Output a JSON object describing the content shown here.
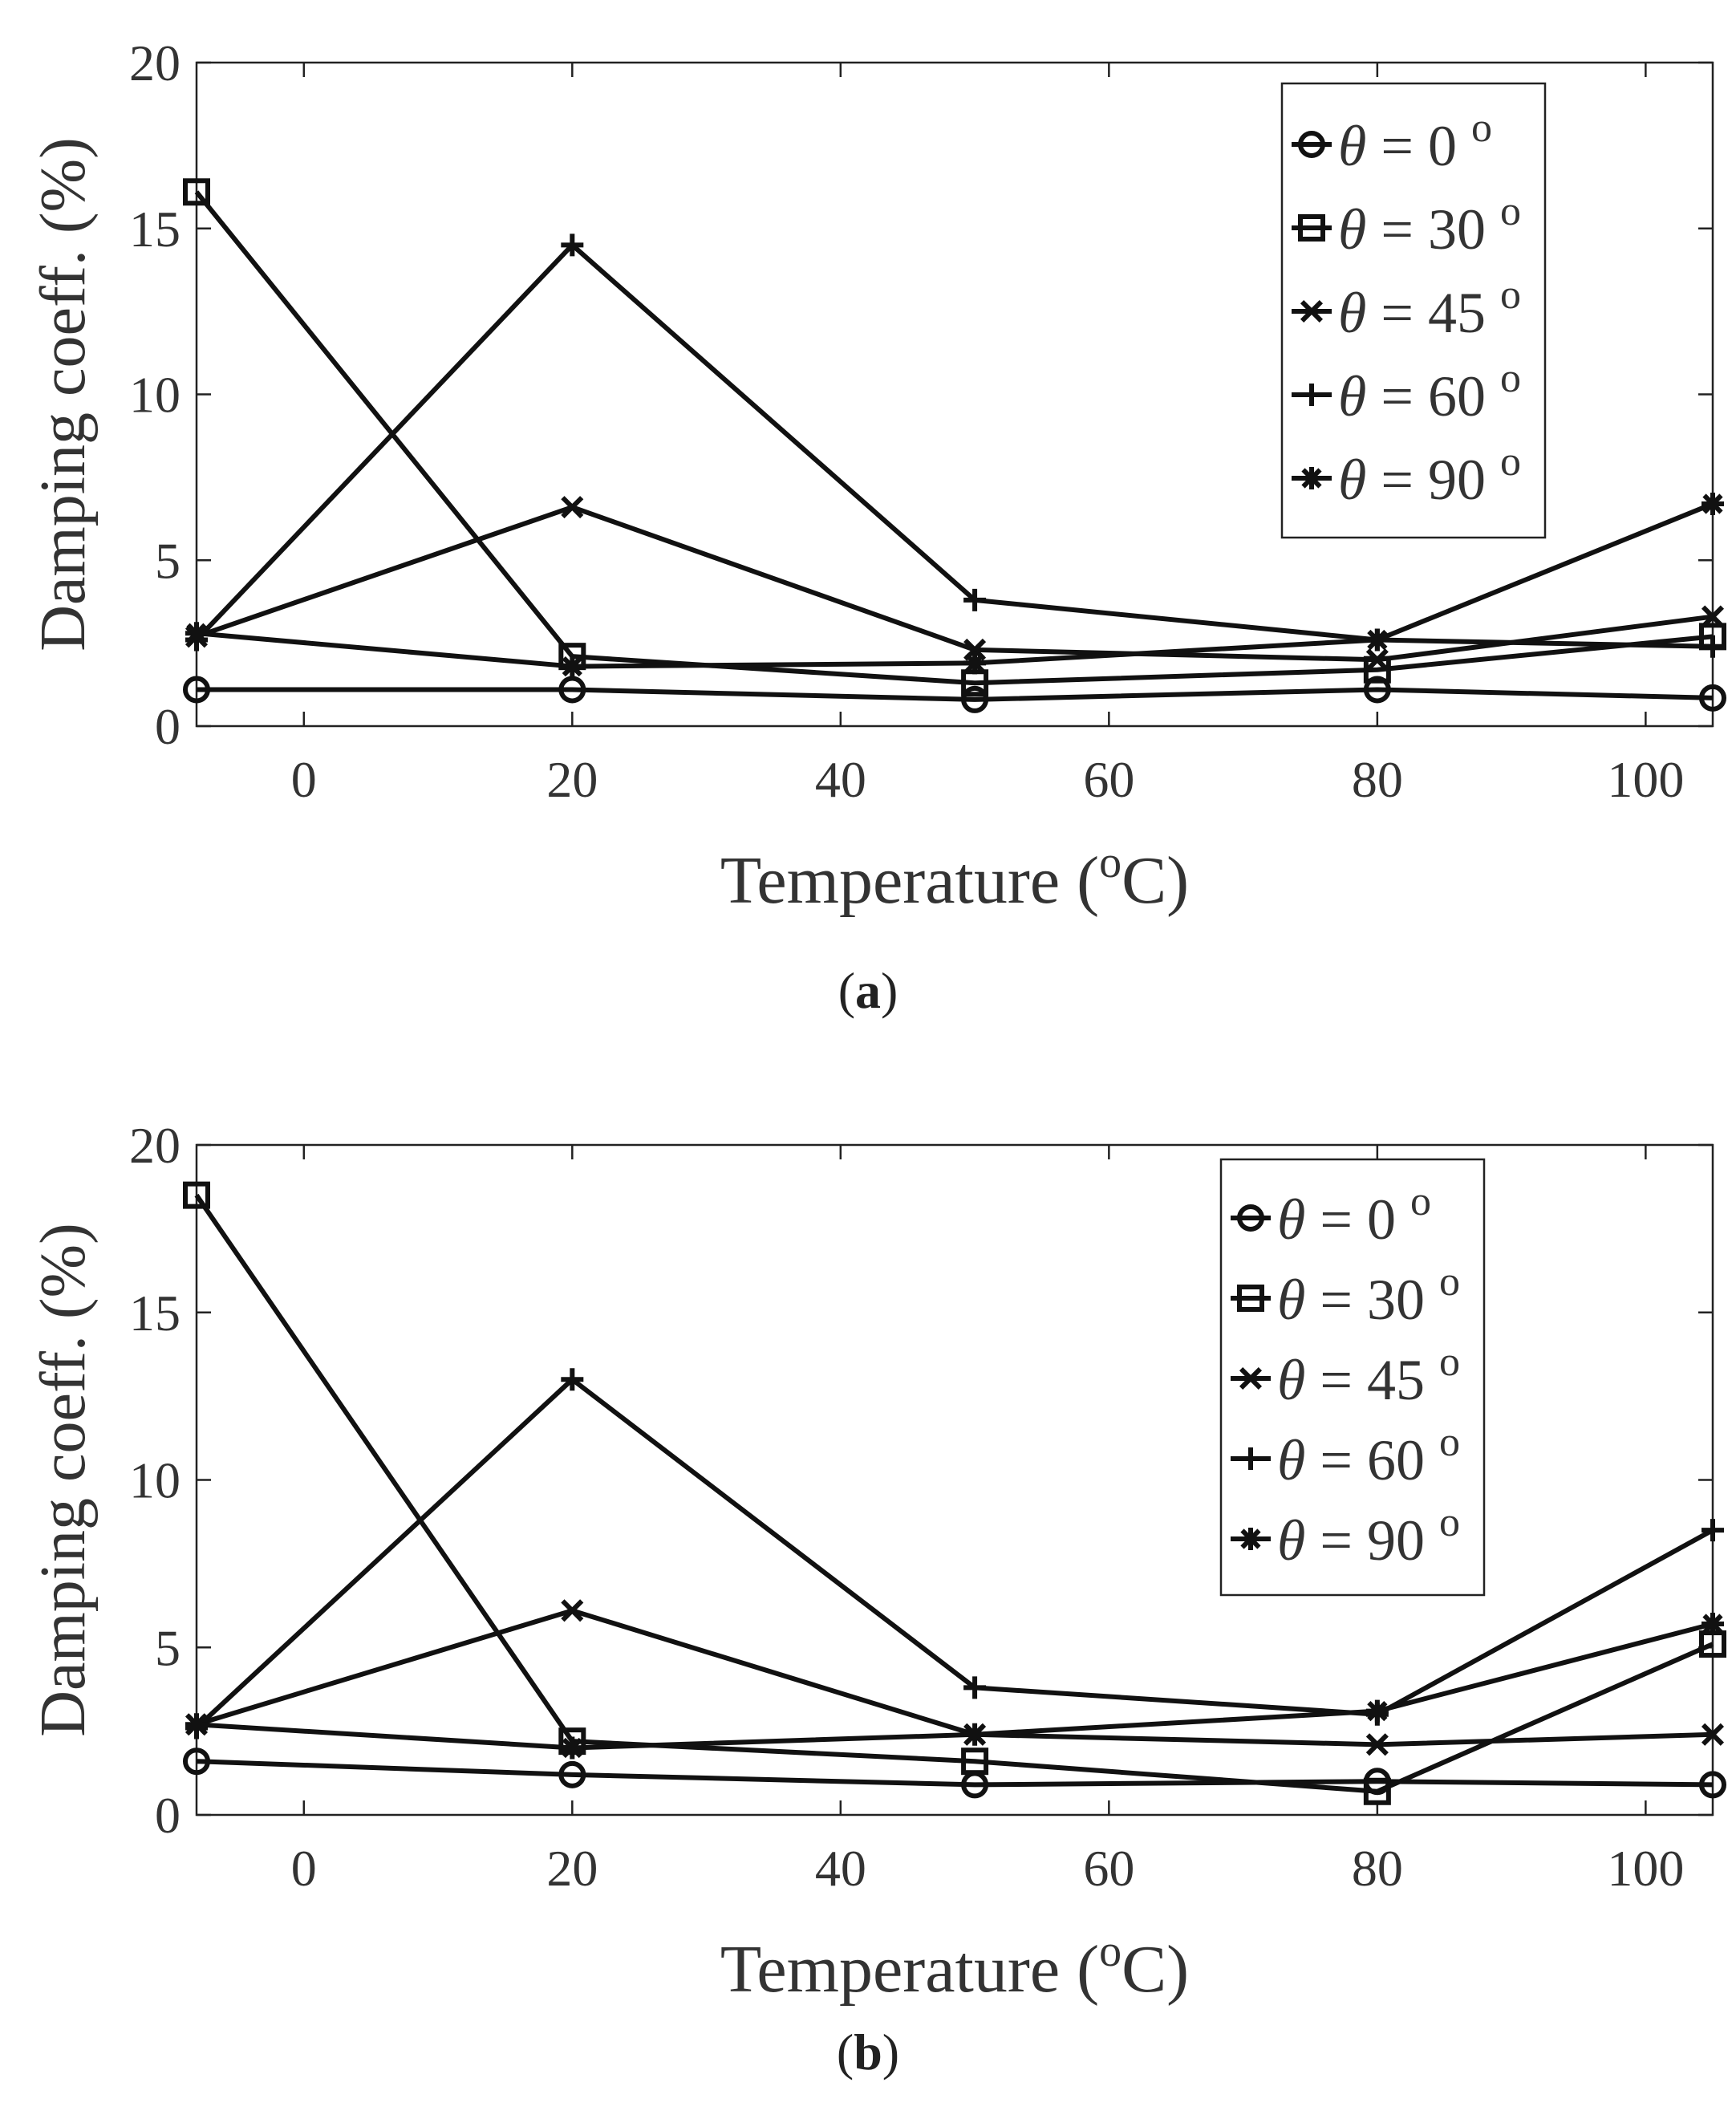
{
  "figures": [
    {
      "caption": {
        "open": "(",
        "letter": "a",
        "close": ")"
      }
    },
    {
      "caption": {
        "open": "(",
        "letter": "b",
        "close": ")"
      }
    }
  ],
  "chart_data": [
    {
      "type": "line",
      "title": "",
      "xlabel": "Temperature (",
      "xlabel_sup": "o",
      "xlabel_end": "C)",
      "ylabel": "Damping coeff. (%)",
      "xlim": [
        -8,
        105
      ],
      "ylim": [
        0,
        20
      ],
      "xticks": [
        0,
        20,
        40,
        60,
        80,
        100
      ],
      "yticks": [
        0,
        5,
        10,
        15,
        20
      ],
      "legend_position": "top-right",
      "x": [
        -8,
        20,
        50,
        80,
        105
      ],
      "series": [
        {
          "name": "θ = 0 ",
          "sup": "o",
          "marker": "circle",
          "values": [
            1.1,
            1.1,
            0.8,
            1.1,
            0.85
          ]
        },
        {
          "name": "θ = 30 ",
          "sup": "o",
          "marker": "square",
          "values": [
            16.1,
            2.1,
            1.3,
            1.7,
            2.7
          ]
        },
        {
          "name": "θ = 45 ",
          "sup": "o",
          "marker": "x",
          "values": [
            2.7,
            6.6,
            2.3,
            2.0,
            3.3
          ]
        },
        {
          "name": "θ = 60 ",
          "sup": "o",
          "marker": "plus",
          "values": [
            2.6,
            14.5,
            3.8,
            2.6,
            2.4
          ]
        },
        {
          "name": "θ = 90 ",
          "sup": "o",
          "marker": "asterisk",
          "values": [
            2.8,
            1.8,
            1.9,
            2.6,
            6.7
          ]
        }
      ]
    },
    {
      "type": "line",
      "title": "",
      "xlabel": "Temperature (",
      "xlabel_sup": "o",
      "xlabel_end": "C)",
      "ylabel": "Damping coeff. (%)",
      "xlim": [
        -8,
        105
      ],
      "ylim": [
        0,
        20
      ],
      "xticks": [
        0,
        20,
        40,
        60,
        80,
        100
      ],
      "yticks": [
        0,
        5,
        10,
        15,
        20
      ],
      "legend_position": "top-right",
      "x": [
        -8,
        20,
        50,
        80,
        105
      ],
      "series": [
        {
          "name": "θ = 0 ",
          "sup": "o",
          "marker": "circle",
          "values": [
            1.6,
            1.2,
            0.9,
            1.0,
            0.9
          ]
        },
        {
          "name": "θ = 30 ",
          "sup": "o",
          "marker": "square",
          "values": [
            18.5,
            2.2,
            1.6,
            0.7,
            5.1
          ]
        },
        {
          "name": "θ = 45 ",
          "sup": "o",
          "marker": "x",
          "values": [
            2.7,
            6.1,
            2.4,
            2.1,
            2.4
          ]
        },
        {
          "name": "θ = 60 ",
          "sup": "o",
          "marker": "plus",
          "values": [
            2.6,
            13.0,
            3.8,
            3.0,
            8.5
          ]
        },
        {
          "name": "θ = 90 ",
          "sup": "o",
          "marker": "asterisk",
          "values": [
            2.7,
            2.0,
            2.4,
            3.1,
            5.7
          ]
        }
      ]
    }
  ]
}
